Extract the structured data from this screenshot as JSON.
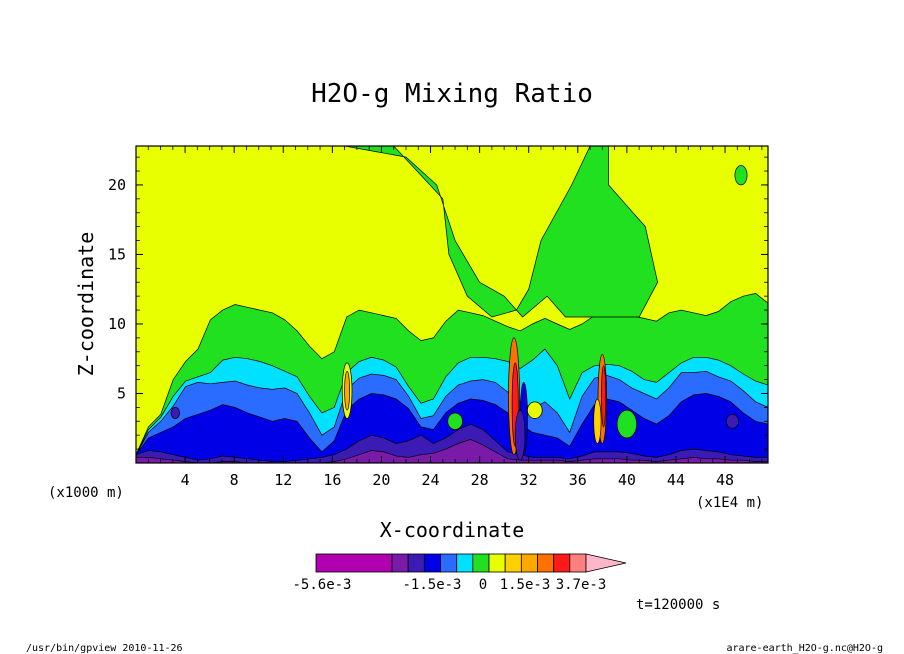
{
  "chart_data": {
    "type": "heatmap",
    "title": "H2O-g Mixing Ratio",
    "xlabel": "X-coordinate",
    "ylabel": "Z-coordinate",
    "x_unit_label": "(x1000 m)",
    "x_scale_label": "(x1E4 m)",
    "xlim": [
      0,
      51.5
    ],
    "ylim": [
      0,
      22.8
    ],
    "x_ticks": [
      4,
      8,
      12,
      16,
      20,
      24,
      28,
      32,
      36,
      40,
      44,
      48
    ],
    "y_ticks": [
      5,
      10,
      15,
      20
    ],
    "time_label": "t=120000 s",
    "colorbar": {
      "colors": [
        "#b000b0",
        "#b000b0",
        "#b000b0",
        "#7a1aa8",
        "#3c1ab4",
        "#0000e6",
        "#2a6cff",
        "#00e0ff",
        "#20e020",
        "#e8ff00",
        "#ffd000",
        "#ffa800",
        "#ff7000",
        "#ff1a1a",
        "#ff8080",
        "#ffb6c8"
      ],
      "tick_labels": [
        "-5.6e-3",
        "-1.5e-3",
        "0",
        "1.5e-3",
        "3.7e-3"
      ]
    },
    "bands": [
      {
        "name": "light-green",
        "color": "#20e020",
        "y": [
          0.6,
          2.6,
          3.5,
          6.0,
          7.3,
          8.2,
          10.3,
          11.0,
          11.4,
          11.2,
          11.0,
          10.8,
          10.3,
          9.5,
          8.4,
          7.5,
          8.0,
          10.5,
          11.0,
          10.8,
          10.6,
          10.4,
          9.5,
          8.8,
          9.0,
          10.2,
          11.0,
          10.8,
          10.6,
          10.2,
          9.8,
          9.5,
          10.0,
          10.4,
          10.0,
          9.6,
          10.0,
          10.6,
          10.9,
          10.9,
          10.6,
          10.4,
          10.2,
          10.8,
          11.0,
          10.8,
          10.6,
          10.9,
          11.6,
          12.0,
          12.2,
          11.5
        ]
      },
      {
        "name": "cyan",
        "color": "#00e0ff",
        "y": [
          0.6,
          2.4,
          3.3,
          4.8,
          5.9,
          6.2,
          6.5,
          7.4,
          7.6,
          7.5,
          7.3,
          7.0,
          6.6,
          6.2,
          4.8,
          3.6,
          4.0,
          6.5,
          7.3,
          7.6,
          7.4,
          6.9,
          5.5,
          4.3,
          4.6,
          6.2,
          7.2,
          7.6,
          7.6,
          7.5,
          7.3,
          6.8,
          7.4,
          8.2,
          7.0,
          4.6,
          6.5,
          7.0,
          7.1,
          7.0,
          6.6,
          6.0,
          5.8,
          6.5,
          7.2,
          7.6,
          7.6,
          7.4,
          7.0,
          6.4,
          5.9,
          5.6
        ]
      },
      {
        "name": "blue",
        "color": "#2a6cff",
        "y": [
          0.6,
          2.2,
          3.0,
          4.1,
          5.5,
          5.8,
          5.7,
          5.8,
          5.9,
          5.6,
          5.4,
          5.3,
          5.4,
          5.0,
          3.6,
          2.0,
          2.6,
          5.3,
          6.1,
          6.4,
          6.3,
          6.0,
          4.8,
          3.2,
          3.4,
          4.8,
          5.6,
          5.9,
          6.0,
          5.8,
          5.1,
          4.4,
          3.9,
          4.4,
          3.6,
          2.2,
          4.8,
          6.1,
          6.3,
          6.0,
          5.4,
          5.0,
          4.6,
          5.4,
          6.5,
          6.5,
          6.6,
          6.2,
          5.9,
          5.2,
          4.4,
          4.0
        ]
      },
      {
        "name": "dark-blue",
        "color": "#0000e6",
        "y": [
          0.6,
          1.8,
          2.2,
          2.6,
          3.2,
          3.5,
          3.8,
          4.2,
          4.0,
          3.6,
          3.3,
          3.0,
          3.2,
          3.0,
          1.8,
          0.8,
          1.6,
          3.8,
          4.6,
          5.0,
          4.9,
          4.6,
          3.9,
          2.6,
          2.4,
          3.6,
          4.3,
          4.6,
          4.5,
          4.2,
          3.6,
          2.8,
          2.2,
          2.0,
          1.8,
          1.2,
          2.8,
          4.2,
          4.6,
          4.4,
          3.8,
          3.2,
          2.8,
          3.4,
          4.4,
          4.9,
          5.0,
          4.8,
          4.4,
          3.6,
          3.0,
          2.8
        ]
      },
      {
        "name": "indigo",
        "color": "#3c1ab4",
        "y": [
          0.6,
          0.9,
          0.8,
          0.6,
          0.4,
          0.2,
          0.3,
          0.5,
          0.4,
          0.3,
          0.2,
          0.1,
          0.1,
          0.2,
          0.3,
          0.4,
          0.6,
          1.0,
          1.6,
          2.0,
          1.8,
          1.4,
          1.6,
          2.0,
          1.4,
          1.8,
          2.4,
          2.8,
          2.4,
          1.6,
          0.8,
          0.6,
          0.4,
          0.4,
          0.4,
          0.3,
          0.5,
          0.8,
          0.8,
          0.8,
          0.7,
          0.5,
          0.4,
          0.6,
          0.9,
          1.0,
          0.9,
          0.8,
          0.6,
          0.5,
          0.4,
          0.4
        ]
      },
      {
        "name": "purple",
        "color": "#7a1aa8",
        "y": [
          0.4,
          0.4,
          0.3,
          0.2,
          0.1,
          0.0,
          0.0,
          0.1,
          0.1,
          0.0,
          0.0,
          0.0,
          0.0,
          0.0,
          0.0,
          0.0,
          0.1,
          0.3,
          0.6,
          0.9,
          0.8,
          0.5,
          0.4,
          0.6,
          0.7,
          1.0,
          1.4,
          1.7,
          1.3,
          0.8,
          0.3,
          0.2,
          0.2,
          0.2,
          0.2,
          0.1,
          0.2,
          0.3,
          0.3,
          0.3,
          0.2,
          0.2,
          0.1,
          0.2,
          0.3,
          0.4,
          0.3,
          0.3,
          0.2,
          0.2,
          0.1,
          0.1
        ]
      }
    ]
  },
  "footer": {
    "left": "/usr/bin/gpview  2010-11-26",
    "right": "arare-earth_H2O-g.nc@H2O-g"
  }
}
